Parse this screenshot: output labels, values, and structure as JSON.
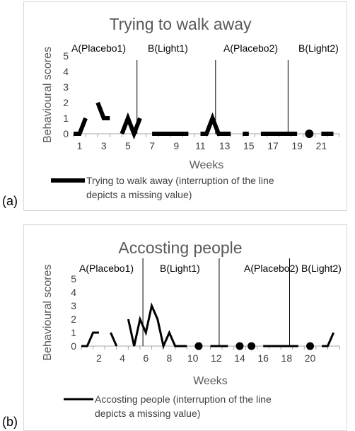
{
  "panel_labels": [
    "(a)",
    "(b)"
  ],
  "chart_data": [
    {
      "type": "line",
      "title": "Trying to walk away",
      "xlabel": "Weeks",
      "ylabel": "Behavioural scores",
      "x_ticks": [
        "1",
        "3",
        "5",
        "7",
        "9",
        "11",
        "13",
        "15",
        "17",
        "19",
        "21"
      ],
      "y_ticks": [
        "0",
        "1",
        "2",
        "3",
        "4",
        "5"
      ],
      "xlim": [
        0,
        22
      ],
      "ylim": [
        0,
        5
      ],
      "phases": [
        "A(Placebo1)",
        "B(Light1)",
        "A(Placebo2)",
        "B(Light2)"
      ],
      "series": [
        {
          "name": "Trying to walk away (interruption of the line depicts a missing value)",
          "color": "#000000",
          "x": [
            0,
            0.5,
            1,
            1.5,
            2,
            2.5,
            3,
            3.5,
            4,
            4.5,
            5,
            5.5,
            6,
            6.5,
            7,
            7.5,
            8,
            8.5,
            9,
            9.5,
            10,
            10.5,
            11,
            11.5,
            12,
            12.5,
            13,
            13.5,
            14,
            14.5,
            15,
            15.5,
            16,
            16.5,
            17,
            17.5,
            18,
            18.5,
            19,
            19.5,
            20,
            20.5,
            21,
            21.5
          ],
          "y": [
            0,
            0,
            1,
            null,
            2,
            1,
            1,
            null,
            0,
            1,
            0,
            1,
            null,
            0,
            0,
            0,
            0,
            0,
            0,
            0,
            null,
            0,
            0,
            1,
            0,
            0,
            0,
            null,
            0,
            0,
            null,
            0,
            0,
            0,
            0,
            0,
            0,
            0,
            null,
            0,
            null,
            0,
            0,
            0
          ]
        }
      ],
      "phase_change_x": [
        5.25,
        11.75,
        17.75
      ]
    },
    {
      "type": "line",
      "title": "Accosting people",
      "xlabel": "Weeks",
      "ylabel": "Behavioural scores",
      "x_ticks": [
        "2",
        "4",
        "6",
        "8",
        "10",
        "12",
        "14",
        "16",
        "18",
        "20"
      ],
      "y_ticks": [
        "0",
        "1",
        "2",
        "3",
        "4",
        "5"
      ],
      "xlim": [
        0,
        22
      ],
      "ylim": [
        0,
        5
      ],
      "phases": [
        "A(Placebo1)",
        "B(Light1)",
        "A(Placebo2)",
        "B(Light2)"
      ],
      "series": [
        {
          "name": "Accosting people (interruption of the line depicts a missing value)",
          "color": "#000000",
          "x": [
            0,
            0.5,
            1,
            1.5,
            2,
            2.5,
            3,
            3.5,
            4,
            4.5,
            5,
            5.5,
            6,
            6.5,
            7,
            7.5,
            8,
            8.5,
            9,
            9.5,
            10,
            10.5,
            11,
            11.5,
            12,
            12.5,
            13,
            13.5,
            14,
            14.5,
            15,
            15.5,
            16,
            16.5,
            17,
            17.5,
            18,
            18.5,
            19,
            19.5,
            20,
            20.5,
            21,
            21.5
          ],
          "y": [
            0,
            0,
            1,
            1,
            null,
            1,
            0,
            null,
            2,
            0,
            2,
            1,
            3,
            2,
            0,
            1,
            0,
            0,
            0,
            null,
            0,
            null,
            0,
            0,
            0,
            0,
            null,
            0,
            null,
            0,
            null,
            0,
            0,
            0,
            0,
            0,
            0,
            0,
            null,
            0,
            null,
            0,
            0,
            1
          ]
        }
      ],
      "phase_change_x": [
        5.25,
        11.75,
        17.75
      ]
    }
  ]
}
